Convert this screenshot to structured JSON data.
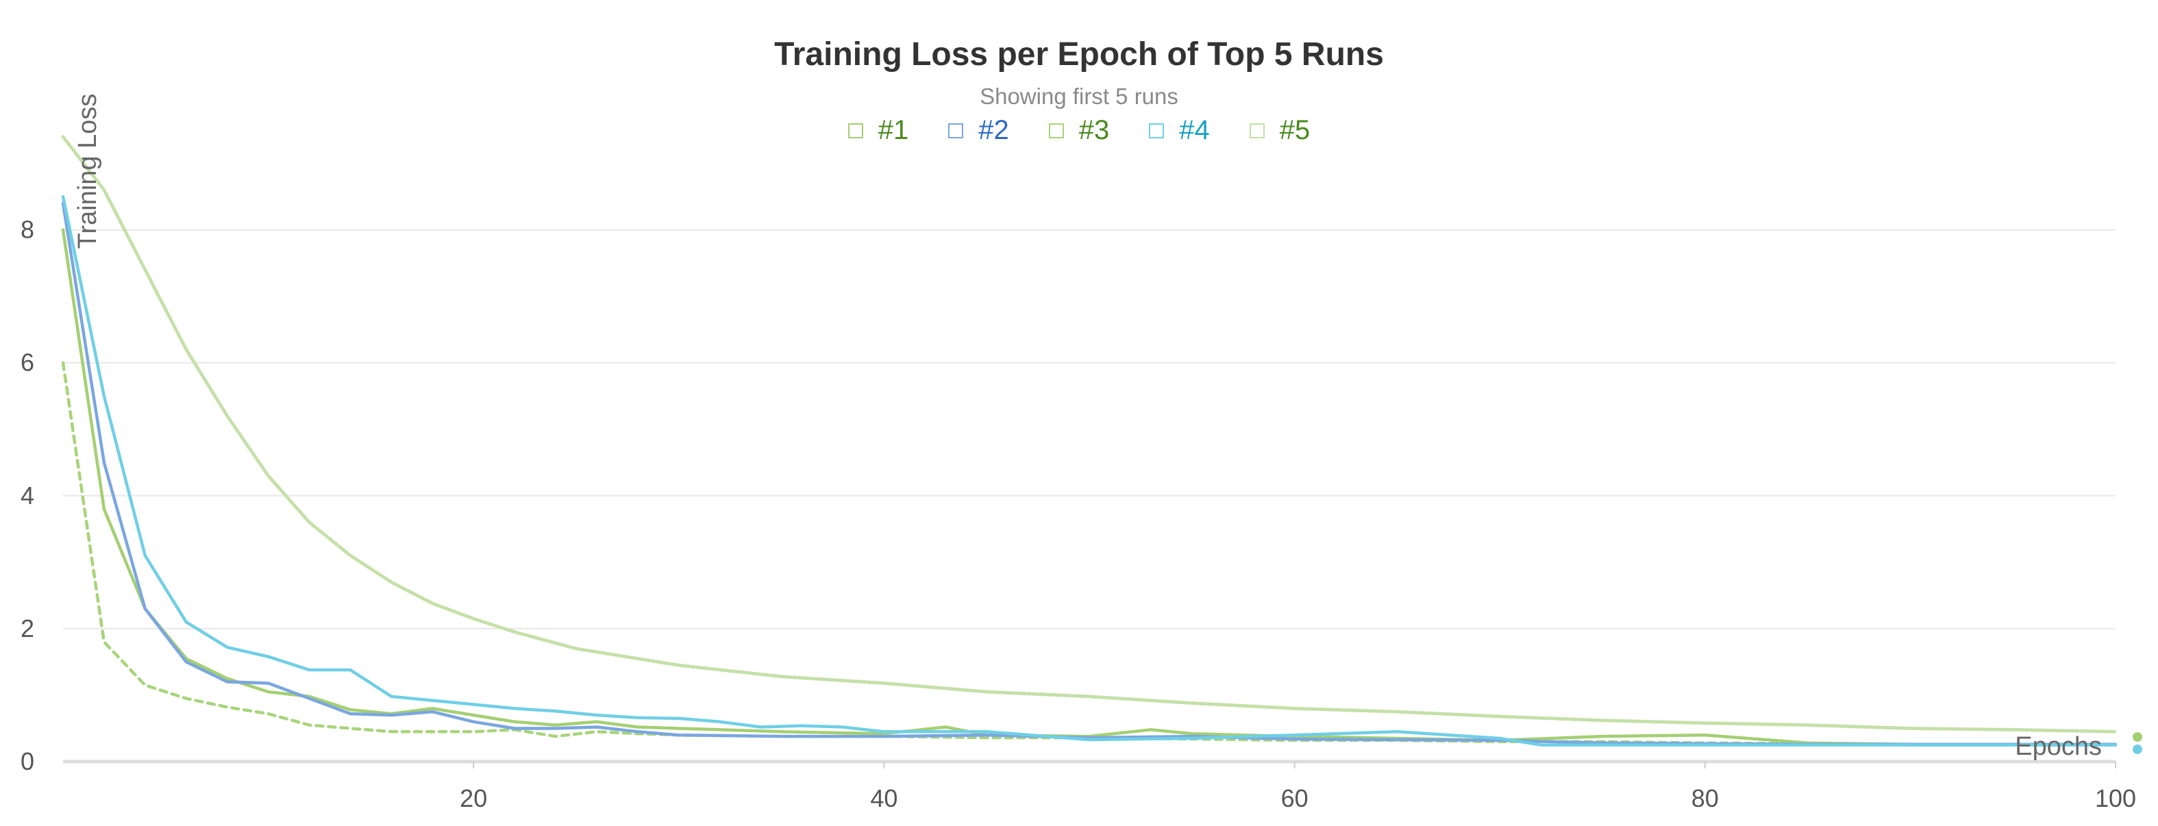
{
  "chart_data": {
    "type": "line",
    "title": "Training Loss per Epoch of Top 5 Runs",
    "subtitle": "Showing first 5 runs",
    "xlabel": "Epochs",
    "ylabel": "Training Loss",
    "xlim": [
      0,
      100
    ],
    "ylim": [
      0,
      9.5
    ],
    "x_ticks": [
      20,
      40,
      60,
      80,
      100
    ],
    "y_ticks": [
      0,
      2,
      4,
      6,
      8
    ],
    "grid": "horizontal",
    "legend_position": "top-center",
    "series": [
      {
        "name": "#1",
        "color": "#a4cf72",
        "legend_text_color": "#4a8a1e",
        "style": "solid",
        "x": [
          0,
          2,
          4,
          6,
          8,
          10,
          12,
          14,
          16,
          18,
          20,
          22,
          24,
          26,
          28,
          30,
          35,
          40,
          43,
          45,
          50,
          53,
          55,
          60,
          65,
          70,
          75,
          80,
          85,
          90,
          95,
          100
        ],
        "y": [
          8.0,
          3.8,
          2.3,
          1.55,
          1.25,
          1.05,
          0.98,
          0.78,
          0.72,
          0.8,
          0.7,
          0.6,
          0.55,
          0.6,
          0.52,
          0.5,
          0.45,
          0.42,
          0.52,
          0.4,
          0.38,
          0.48,
          0.42,
          0.38,
          0.35,
          0.32,
          0.38,
          0.4,
          0.28,
          0.26,
          0.25,
          0.25
        ]
      },
      {
        "name": "#2",
        "color": "#7aa6e0",
        "legend_text_color": "#2d68c4",
        "style": "solid",
        "x": [
          0,
          2,
          4,
          6,
          8,
          10,
          12,
          14,
          16,
          18,
          20,
          22,
          24,
          26,
          28,
          30,
          35,
          40,
          45,
          50,
          55,
          60,
          65,
          70,
          75,
          80,
          85,
          90,
          95,
          100
        ],
        "y": [
          8.4,
          4.5,
          2.3,
          1.5,
          1.2,
          1.18,
          0.95,
          0.72,
          0.7,
          0.75,
          0.6,
          0.5,
          0.5,
          0.52,
          0.45,
          0.4,
          0.38,
          0.38,
          0.4,
          0.36,
          0.38,
          0.34,
          0.33,
          0.32,
          0.28,
          0.27,
          0.26,
          0.26,
          0.26,
          0.26
        ]
      },
      {
        "name": "#3",
        "color": "#a8d47a",
        "legend_text_color": "#4a8a1e",
        "style": "dashed",
        "x": [
          0,
          2,
          4,
          6,
          8,
          10,
          12,
          14,
          16,
          18,
          20,
          22,
          24,
          26,
          28,
          30,
          35,
          40,
          45,
          50,
          55,
          60,
          65,
          70,
          75,
          80,
          85,
          90,
          95,
          100
        ],
        "y": [
          6.0,
          1.8,
          1.15,
          0.95,
          0.82,
          0.72,
          0.55,
          0.5,
          0.45,
          0.45,
          0.45,
          0.48,
          0.38,
          0.45,
          0.42,
          0.4,
          0.38,
          0.38,
          0.36,
          0.36,
          0.34,
          0.32,
          0.32,
          0.3,
          0.3,
          0.28,
          0.27,
          0.26,
          0.26,
          0.26
        ]
      },
      {
        "name": "#4",
        "color": "#6fcfe6",
        "legend_text_color": "#1aa0c2",
        "style": "solid",
        "x": [
          0,
          2,
          4,
          6,
          8,
          10,
          12,
          14,
          16,
          18,
          20,
          22,
          24,
          26,
          28,
          30,
          32,
          34,
          36,
          38,
          40,
          45,
          50,
          55,
          60,
          65,
          70,
          72,
          75,
          80,
          85,
          90,
          95,
          100
        ],
        "y": [
          8.5,
          5.5,
          3.1,
          2.1,
          1.72,
          1.58,
          1.38,
          1.38,
          0.98,
          0.92,
          0.86,
          0.8,
          0.76,
          0.7,
          0.66,
          0.65,
          0.6,
          0.52,
          0.54,
          0.52,
          0.45,
          0.45,
          0.33,
          0.35,
          0.4,
          0.45,
          0.35,
          0.25,
          0.25,
          0.25,
          0.25,
          0.25,
          0.25,
          0.25
        ]
      },
      {
        "name": "#5",
        "color": "#c5e0a8",
        "legend_text_color": "#4a8a1e",
        "style": "dotted",
        "x": [
          0,
          2,
          4,
          6,
          8,
          10,
          12,
          14,
          16,
          18,
          20,
          22,
          25,
          30,
          35,
          40,
          45,
          50,
          55,
          60,
          65,
          70,
          75,
          80,
          85,
          90,
          95,
          100
        ],
        "y": [
          9.4,
          8.6,
          7.4,
          6.2,
          5.2,
          4.3,
          3.6,
          3.1,
          2.7,
          2.38,
          2.15,
          1.95,
          1.7,
          1.45,
          1.28,
          1.18,
          1.05,
          0.98,
          0.88,
          0.8,
          0.75,
          0.68,
          0.62,
          0.58,
          0.55,
          0.5,
          0.48,
          0.45
        ]
      }
    ]
  }
}
